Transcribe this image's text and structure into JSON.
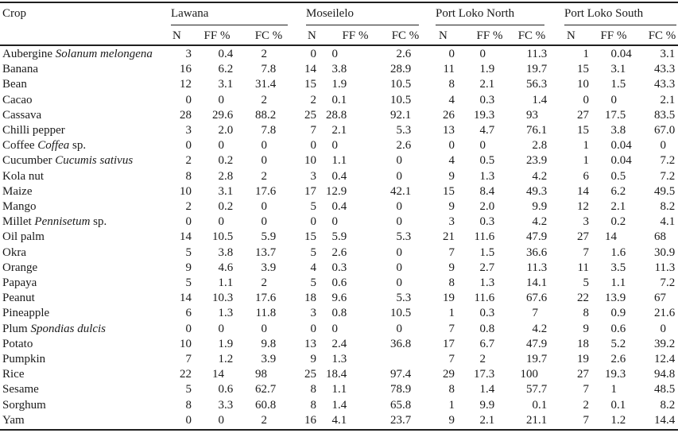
{
  "page": {
    "background": "#ffffff",
    "text_color": "#1a1a1a",
    "rule_color": "#1f1f1f"
  },
  "table": {
    "row_header_label": "Crop",
    "groups": [
      {
        "label": "Lawana"
      },
      {
        "label": "Moseilelo"
      },
      {
        "label": "Port Loko North"
      },
      {
        "label": "Port Loko South"
      }
    ],
    "sub_columns": [
      "N",
      "FF %",
      "FC %"
    ],
    "rows": [
      {
        "name": "Aubergine",
        "italic": "Solanum melongena",
        "suffix": "",
        "values": [
          "3",
          "0.4",
          "2",
          "0",
          "0",
          "2.6",
          "0",
          "0",
          "11.3",
          "1",
          "0.04",
          "3.1"
        ]
      },
      {
        "name": "Banana",
        "italic": "",
        "suffix": "",
        "values": [
          "16",
          "6.2",
          "7.8",
          "14",
          "3.8",
          "28.9",
          "11",
          "1.9",
          "19.7",
          "15",
          "3.1",
          "43.3"
        ]
      },
      {
        "name": "Bean",
        "italic": "",
        "suffix": "",
        "values": [
          "12",
          "3.1",
          "31.4",
          "15",
          "1.9",
          "10.5",
          "8",
          "2.1",
          "56.3",
          "10",
          "1.5",
          "43.3"
        ]
      },
      {
        "name": "Cacao",
        "italic": "",
        "suffix": "",
        "values": [
          "0",
          "0",
          "2",
          "2",
          "0.1",
          "10.5",
          "4",
          "0.3",
          "1.4",
          "0",
          "0",
          "2.1"
        ]
      },
      {
        "name": "Cassava",
        "italic": "",
        "suffix": "",
        "values": [
          "28",
          "29.6",
          "88.2",
          "25",
          "28.8",
          "92.1",
          "26",
          "19.3",
          "93",
          "27",
          "17.5",
          "83.5"
        ]
      },
      {
        "name": "Chilli pepper",
        "italic": "",
        "suffix": "",
        "values": [
          "3",
          "2.0",
          "7.8",
          "7",
          "2.1",
          "5.3",
          "13",
          "4.7",
          "76.1",
          "15",
          "3.8",
          "67.0"
        ]
      },
      {
        "name": "Coffee",
        "italic": "Coffea",
        "suffix": " sp.",
        "values": [
          "0",
          "0",
          "0",
          "0",
          "0",
          "2.6",
          "0",
          "0",
          "2.8",
          "1",
          "0.04",
          "0"
        ]
      },
      {
        "name": "Cucumber",
        "italic": "Cucumis sativus",
        "suffix": "",
        "values": [
          "2",
          "0.2",
          "0",
          "10",
          "1.1",
          "0",
          "4",
          "0.5",
          "23.9",
          "1",
          "0.04",
          "7.2"
        ]
      },
      {
        "name": "Kola nut",
        "italic": "",
        "suffix": "",
        "values": [
          "8",
          "2.8",
          "2",
          "3",
          "0.4",
          "0",
          "9",
          "1.3",
          "4.2",
          "6",
          "0.5",
          "7.2"
        ]
      },
      {
        "name": "Maize",
        "italic": "",
        "suffix": "",
        "values": [
          "10",
          "3.1",
          "17.6",
          "17",
          "12.9",
          "42.1",
          "15",
          "8.4",
          "49.3",
          "14",
          "6.2",
          "49.5"
        ]
      },
      {
        "name": "Mango",
        "italic": "",
        "suffix": "",
        "values": [
          "2",
          "0.2",
          "0",
          "5",
          "0.4",
          "0",
          "9",
          "2.0",
          "9.9",
          "12",
          "2.1",
          "8.2"
        ]
      },
      {
        "name": "Millet",
        "italic": "Pennisetum",
        "suffix": " sp.",
        "values": [
          "0",
          "0",
          "0",
          "0",
          "0",
          "0",
          "3",
          "0.3",
          "4.2",
          "3",
          "0.2",
          "4.1"
        ]
      },
      {
        "name": "Oil palm",
        "italic": "",
        "suffix": "",
        "values": [
          "14",
          "10.5",
          "5.9",
          "15",
          "5.9",
          "5.3",
          "21",
          "11.6",
          "47.9",
          "27",
          "14",
          "68"
        ]
      },
      {
        "name": "Okra",
        "italic": "",
        "suffix": "",
        "values": [
          "5",
          "3.8",
          "13.7",
          "5",
          "2.6",
          "0",
          "7",
          "1.5",
          "36.6",
          "7",
          "1.6",
          "30.9"
        ]
      },
      {
        "name": "Orange",
        "italic": "",
        "suffix": "",
        "values": [
          "9",
          "4.6",
          "3.9",
          "4",
          "0.3",
          "0",
          "9",
          "2.7",
          "11.3",
          "11",
          "3.5",
          "11.3"
        ]
      },
      {
        "name": "Papaya",
        "italic": "",
        "suffix": "",
        "values": [
          "5",
          "1.1",
          "2",
          "5",
          "0.6",
          "0",
          "8",
          "1.3",
          "14.1",
          "5",
          "1.1",
          "7.2"
        ]
      },
      {
        "name": "Peanut",
        "italic": "",
        "suffix": "",
        "values": [
          "14",
          "10.3",
          "17.6",
          "18",
          "9.6",
          "5.3",
          "19",
          "11.6",
          "67.6",
          "22",
          "13.9",
          "67"
        ]
      },
      {
        "name": "Pineapple",
        "italic": "",
        "suffix": "",
        "values": [
          "6",
          "1.3",
          "11.8",
          "3",
          "0.8",
          "10.5",
          "1",
          "0.3",
          "7",
          "8",
          "0.9",
          "21.6"
        ]
      },
      {
        "name": "Plum",
        "italic": "Spondias dulcis",
        "suffix": "",
        "values": [
          "0",
          "0",
          "0",
          "0",
          "0",
          "0",
          "7",
          "0.8",
          "4.2",
          "9",
          "0.6",
          "0"
        ]
      },
      {
        "name": "Potato",
        "italic": "",
        "suffix": "",
        "values": [
          "10",
          "1.9",
          "9.8",
          "13",
          "2.4",
          "36.8",
          "17",
          "6.7",
          "47.9",
          "18",
          "5.2",
          "39.2"
        ]
      },
      {
        "name": "Pumpkin",
        "italic": "",
        "suffix": "",
        "values": [
          "7",
          "1.2",
          "3.9",
          "9",
          "1.3",
          "",
          "7",
          "2",
          "19.7",
          "19",
          "2.6",
          "12.4"
        ]
      },
      {
        "name": "Rice",
        "italic": "",
        "suffix": "",
        "values": [
          "22",
          "14",
          "98",
          "25",
          "18.4",
          "97.4",
          "29",
          "17.3",
          "100",
          "27",
          "19.3",
          "94.8"
        ]
      },
      {
        "name": "Sesame",
        "italic": "",
        "suffix": "",
        "values": [
          "5",
          "0.6",
          "62.7",
          "8",
          "1.1",
          "78.9",
          "8",
          "1.4",
          "57.7",
          "7",
          "1",
          "48.5"
        ]
      },
      {
        "name": "Sorghum",
        "italic": "",
        "suffix": "",
        "values": [
          "8",
          "3.3",
          "60.8",
          "8",
          "1.4",
          "65.8",
          "1",
          "9.9",
          "0.1",
          "2",
          "0.1",
          "8.2"
        ]
      },
      {
        "name": "Yam",
        "italic": "",
        "suffix": "",
        "values": [
          "0",
          "0",
          "2",
          "16",
          "4.1",
          "23.7",
          "9",
          "2.1",
          "21.1",
          "7",
          "1.2",
          "14.4"
        ]
      }
    ]
  }
}
